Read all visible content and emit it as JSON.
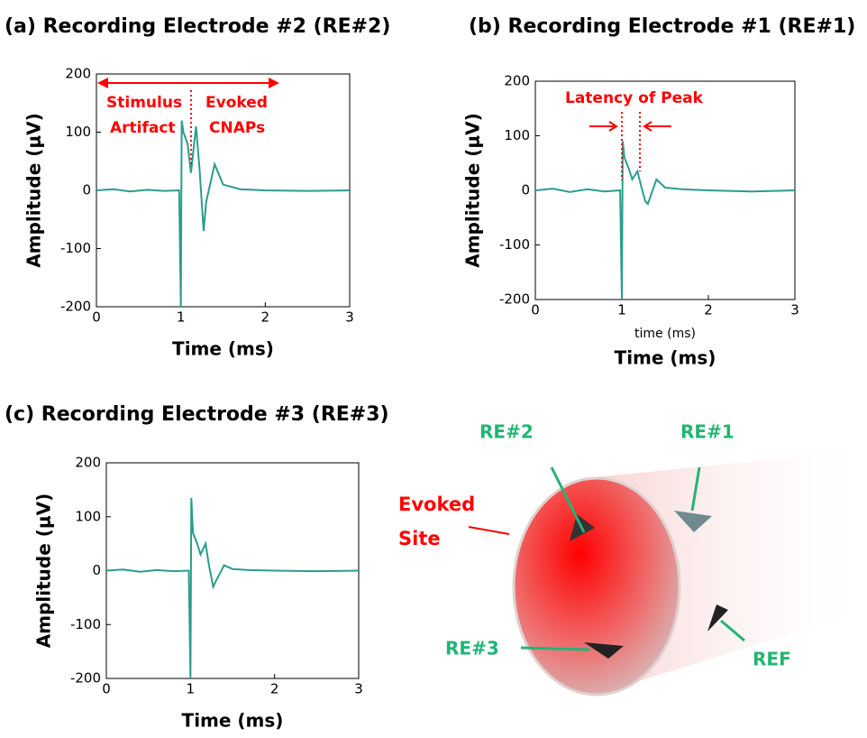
{
  "chart_data": [
    {
      "type": "line",
      "title": "(a) Recording Electrode #2 (RE#2)",
      "x_label": "Time (ms)",
      "y_label": "Amplitude (μV)",
      "x": [
        0,
        0.2,
        0.4,
        0.6,
        0.8,
        0.98,
        1.0,
        1.01,
        1.03,
        1.08,
        1.12,
        1.18,
        1.22,
        1.27,
        1.3,
        1.4,
        1.5,
        1.7,
        2.0,
        2.5,
        3.0
      ],
      "series": [
        {
          "color": "#2a9d8f",
          "values": [
            0,
            2,
            -2,
            1,
            -1,
            0,
            -200,
            120,
            100,
            80,
            30,
            110,
            40,
            -70,
            -20,
            45,
            10,
            2,
            0,
            -1,
            0
          ]
        }
      ],
      "xlim": [
        0,
        3
      ],
      "ylim": [
        -200,
        200
      ],
      "xticks": [
        0,
        1,
        2,
        3
      ],
      "yticks": [
        -200,
        -100,
        0,
        100,
        200
      ],
      "annotations": [
        "Stimulus",
        "Artifact",
        "Evoked",
        "CNAPs"
      ]
    },
    {
      "type": "line",
      "title": "(b) Recording Electrode #1 (RE#1)",
      "x_label": "Time (ms)",
      "y_label": "Amplitude (μV)",
      "x": [
        0,
        0.2,
        0.4,
        0.6,
        0.8,
        0.98,
        1.0,
        1.01,
        1.03,
        1.08,
        1.12,
        1.18,
        1.22,
        1.27,
        1.3,
        1.4,
        1.5,
        1.7,
        2.0,
        2.5,
        3.0
      ],
      "series": [
        {
          "color": "#2a9d8f",
          "values": [
            0,
            3,
            -3,
            2,
            -2,
            0,
            -200,
            90,
            60,
            40,
            20,
            35,
            10,
            -20,
            -25,
            20,
            5,
            2,
            0,
            -2,
            0
          ]
        }
      ],
      "xlim": [
        0,
        3
      ],
      "ylim": [
        -200,
        200
      ],
      "xticks": [
        0,
        1,
        2,
        3
      ],
      "yticks": [
        -200,
        -100,
        0,
        100,
        200
      ],
      "annotations": [
        "Latency of Peak",
        "time (ms)"
      ]
    },
    {
      "type": "line",
      "title": "(c) Recording Electrode #3 (RE#3)",
      "x_label": "Time (ms)",
      "y_label": "Amplitude (μV)",
      "x": [
        0,
        0.2,
        0.4,
        0.6,
        0.8,
        0.98,
        1.0,
        1.01,
        1.03,
        1.08,
        1.12,
        1.18,
        1.22,
        1.27,
        1.3,
        1.4,
        1.5,
        1.7,
        2.0,
        2.5,
        3.0
      ],
      "series": [
        {
          "color": "#2a9d8f",
          "values": [
            0,
            2,
            -2,
            1,
            -1,
            0,
            -200,
            135,
            70,
            50,
            30,
            50,
            10,
            -30,
            -20,
            10,
            3,
            1,
            0,
            -1,
            0
          ]
        }
      ],
      "xlim": [
        0,
        3
      ],
      "ylim": [
        -200,
        200
      ],
      "xticks": [
        0,
        1,
        2,
        3
      ],
      "yticks": [
        -200,
        -100,
        0,
        100,
        200
      ],
      "annotations": []
    }
  ],
  "diagram": {
    "labels": [
      "RE#2",
      "RE#1",
      "Evoked",
      "Site",
      "RE#3",
      "REF"
    ]
  }
}
